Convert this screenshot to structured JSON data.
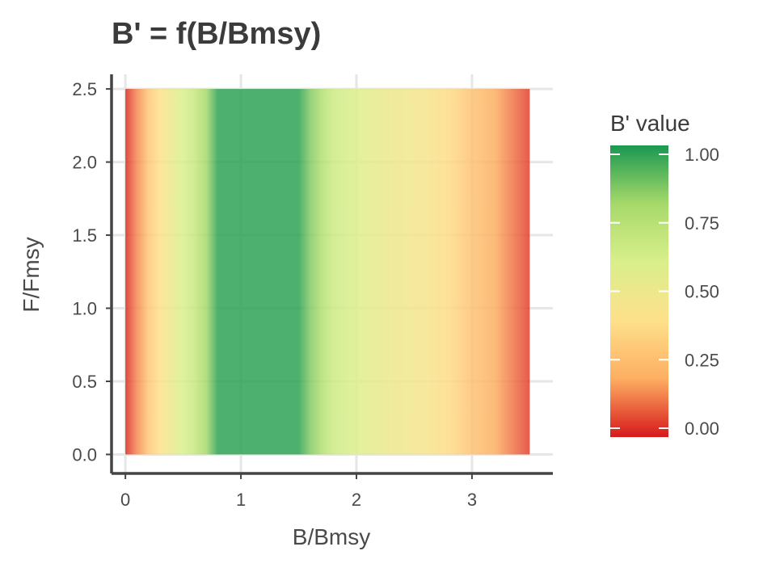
{
  "chart_data": {
    "type": "heatmap",
    "title": "B' = f(B/Bmsy)",
    "xlabel": "B/Bmsy",
    "ylabel": "F/Fmsy",
    "xlim": [
      -0.12,
      3.7
    ],
    "ylim": [
      -0.13,
      2.6
    ],
    "x_range": [
      0,
      3.5
    ],
    "y_range": [
      0,
      2.5
    ],
    "x_ticks": [
      0,
      1,
      2,
      3
    ],
    "x_tick_labels": [
      "0",
      "1",
      "2",
      "3"
    ],
    "y_ticks": [
      0,
      0.5,
      1,
      1.5,
      2,
      2.5
    ],
    "y_tick_labels": [
      "0.0",
      "0.5",
      "1.0",
      "1.5",
      "2.0",
      "2.5"
    ],
    "grid": true,
    "z_profile": {
      "x": [
        0.0,
        0.1,
        0.2,
        0.3,
        0.4,
        0.5,
        0.6,
        0.7,
        0.8,
        1.5,
        1.6,
        1.7,
        1.8,
        2.0,
        2.3,
        2.6,
        2.8,
        3.0,
        3.2,
        3.5
      ],
      "z": [
        0.02,
        0.15,
        0.3,
        0.4,
        0.52,
        0.6,
        0.67,
        0.8,
        0.97,
        0.97,
        0.85,
        0.75,
        0.65,
        0.58,
        0.5,
        0.45,
        0.38,
        0.28,
        0.2,
        0.05
      ]
    },
    "legend": {
      "title": "B' value",
      "placement": "right",
      "range": [
        0,
        1
      ],
      "ticks": [
        0,
        0.25,
        0.5,
        0.75,
        1
      ],
      "tick_labels": [
        "0.00",
        "0.25",
        "0.50",
        "0.75",
        "1.00"
      ]
    },
    "palette": [
      "#d7191c",
      "#fdae61",
      "#fee08b",
      "#d9ef8b",
      "#a6d96a",
      "#1a9850"
    ]
  }
}
